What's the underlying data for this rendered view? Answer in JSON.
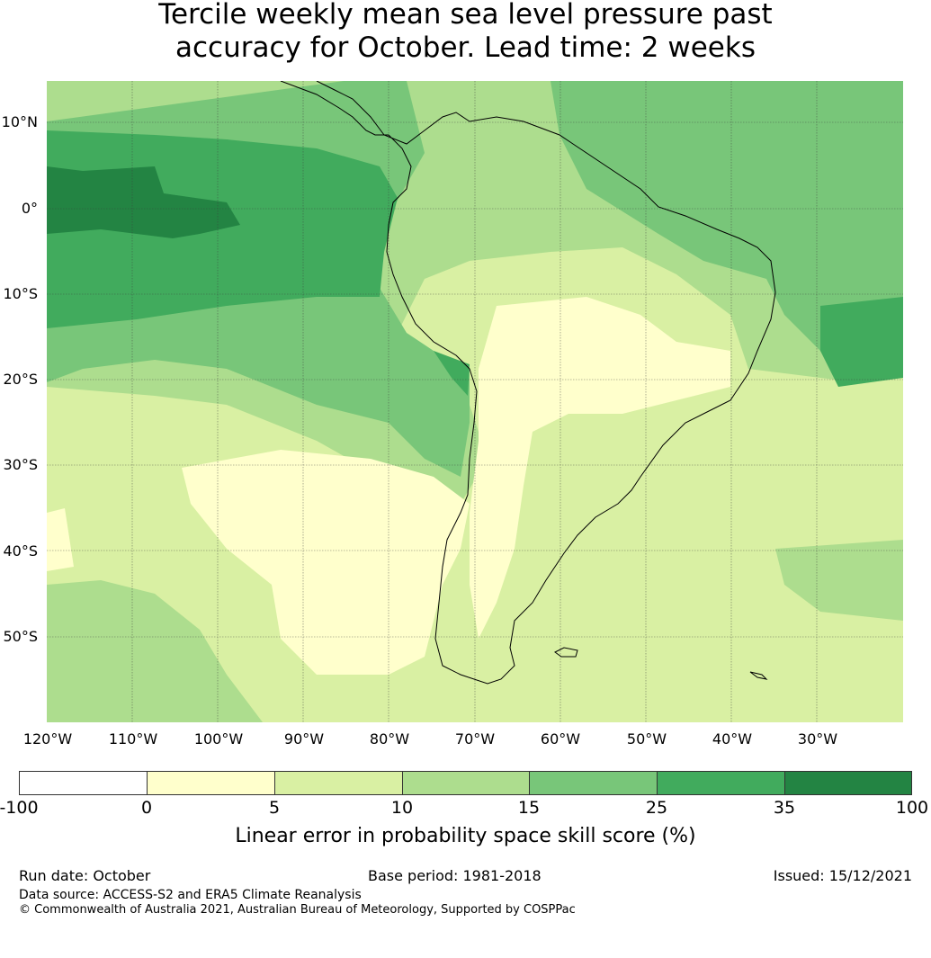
{
  "title_line1": "Tercile weekly mean sea level pressure past",
  "title_line2": "accuracy for October. Lead time: 2 weeks",
  "lat_labels": [
    "10°N",
    "0°",
    "10°S",
    "20°S",
    "30°S",
    "40°S",
    "50°S"
  ],
  "lon_labels": [
    "120°W",
    "110°W",
    "100°W",
    "90°W",
    "80°W",
    "70°W",
    "60°W",
    "50°W",
    "40°W",
    "30°W"
  ],
  "colorbar": {
    "ticks": [
      "-100",
      "0",
      "5",
      "10",
      "15",
      "25",
      "35",
      "100"
    ],
    "colors": [
      "#ffffff",
      "#ffffcc",
      "#d9f0a3",
      "#addd8e",
      "#78c679",
      "#41ab5d",
      "#238443"
    ],
    "label": "Linear error in probability space skill score (%)"
  },
  "footer": {
    "run_date": "Run date: October",
    "base_period": "Base period: 1981-2018",
    "issued": "Issued: 15/12/2021",
    "data_source": "Data source: ACCESS-S2 and ERA5 Climate Reanalysis",
    "copyright": "© Commonwealth of Australia 2021, Australian Bureau of Meteorology, Supported by COSPPac"
  }
}
